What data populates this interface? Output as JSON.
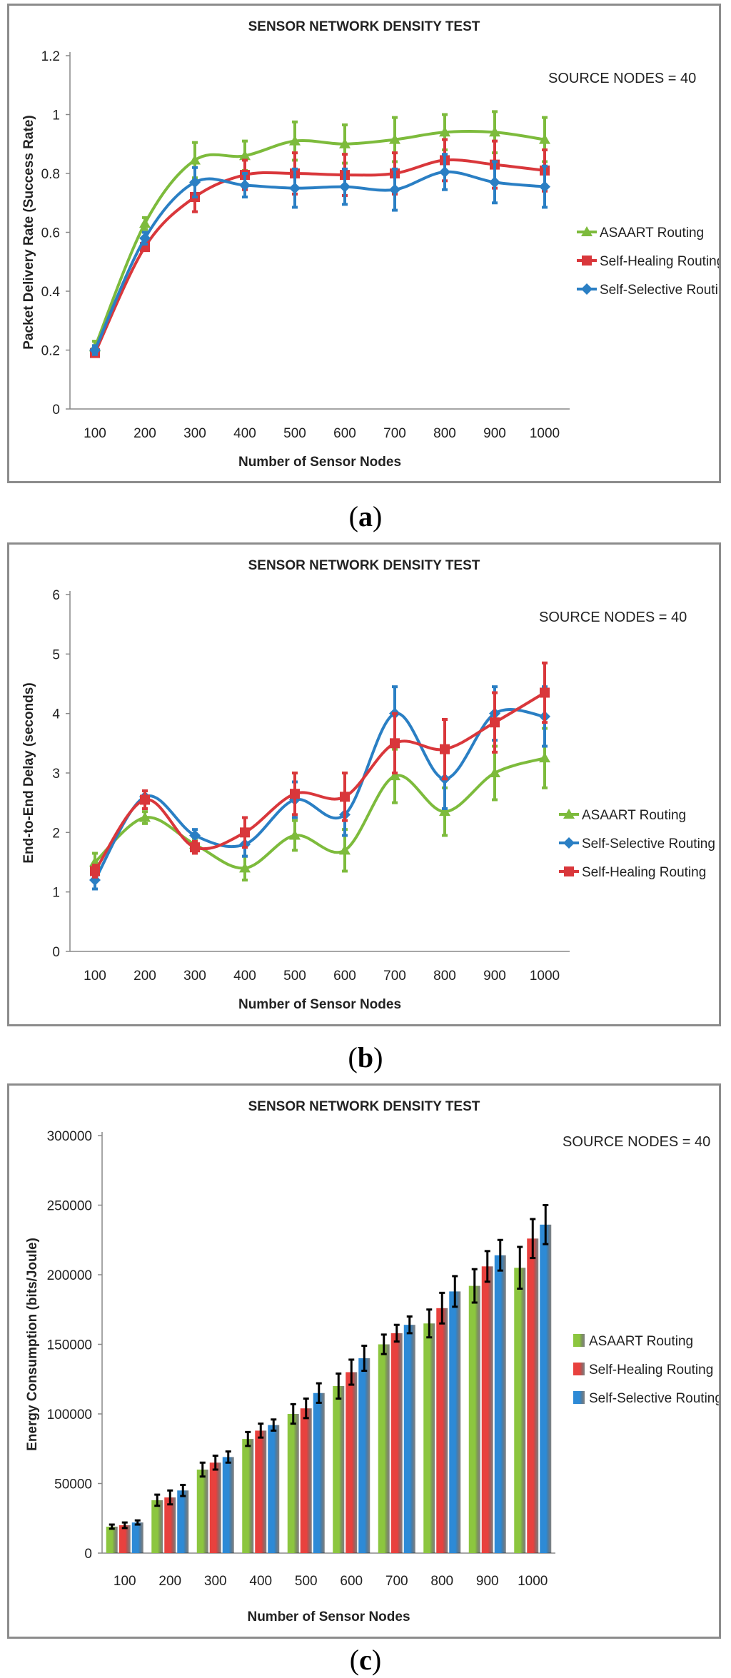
{
  "chart_data": [
    {
      "id": "a",
      "type": "line",
      "title": "SENSOR NETWORK DENSITY TEST",
      "annotation": "SOURCE NODES = 40",
      "xlabel": "Number of Sensor Nodes",
      "ylabel": "Packet Delivery Rate (Success Rate)",
      "categories": [
        "100",
        "200",
        "300",
        "400",
        "500",
        "600",
        "700",
        "800",
        "900",
        "1000"
      ],
      "ylim": [
        0,
        1.2
      ],
      "yticks": [
        0,
        0.2,
        0.4,
        0.6,
        0.8,
        1,
        1.2
      ],
      "ytick_labels": [
        "0",
        "0.2",
        "0.4",
        "0.6",
        "0.8",
        "1",
        "1.2"
      ],
      "legend_position": "right",
      "series": [
        {
          "name": "ASAART Routing",
          "color": "#7dbb3c",
          "marker": "triangle",
          "values": [
            0.21,
            0.63,
            0.845,
            0.86,
            0.91,
            0.9,
            0.915,
            0.94,
            0.94,
            0.915
          ],
          "errors": [
            0.02,
            0.02,
            0.06,
            0.05,
            0.065,
            0.065,
            0.075,
            0.06,
            0.07,
            0.075
          ]
        },
        {
          "name": "Self-Healing Routing",
          "color": "#d9373b",
          "marker": "square",
          "values": [
            0.19,
            0.55,
            0.72,
            0.795,
            0.8,
            0.795,
            0.8,
            0.845,
            0.83,
            0.81
          ],
          "errors": [
            0.01,
            0.01,
            0.05,
            0.05,
            0.07,
            0.07,
            0.07,
            0.07,
            0.08,
            0.07
          ]
        },
        {
          "name": "Self-Selective Routing",
          "color": "#2a7fc4",
          "marker": "diamond",
          "values": [
            0.2,
            0.58,
            0.77,
            0.76,
            0.75,
            0.755,
            0.745,
            0.805,
            0.77,
            0.755
          ],
          "errors": [
            0.015,
            0.02,
            0.05,
            0.04,
            0.065,
            0.06,
            0.07,
            0.06,
            0.07,
            0.07
          ]
        }
      ]
    },
    {
      "id": "b",
      "type": "line",
      "title": "SENSOR NETWORK DENSITY TEST",
      "annotation": "SOURCE NODES = 40",
      "xlabel": "Number of Sensor Nodes",
      "ylabel": "End-to-End Delay (seconds)",
      "categories": [
        "100",
        "200",
        "300",
        "400",
        "500",
        "600",
        "700",
        "800",
        "900",
        "1000"
      ],
      "ylim": [
        0,
        6
      ],
      "yticks": [
        0,
        1,
        2,
        3,
        4,
        5,
        6
      ],
      "ytick_labels": [
        "0",
        "1",
        "2",
        "3",
        "4",
        "5",
        "6"
      ],
      "legend_position": "right",
      "series": [
        {
          "name": "ASAART Routing",
          "color": "#7dbb3c",
          "marker": "triangle",
          "values": [
            1.5,
            2.25,
            1.8,
            1.4,
            1.95,
            1.7,
            2.95,
            2.35,
            3.0,
            3.25
          ],
          "errors": [
            0.15,
            0.1,
            0.1,
            0.2,
            0.25,
            0.35,
            0.45,
            0.4,
            0.45,
            0.5
          ]
        },
        {
          "name": "Self-Selective Routing",
          "color": "#2a7fc4",
          "marker": "diamond",
          "values": [
            1.2,
            2.6,
            1.95,
            1.8,
            2.55,
            2.3,
            4.0,
            2.9,
            4.0,
            3.95
          ],
          "errors": [
            0.15,
            0.1,
            0.1,
            0.2,
            0.3,
            0.35,
            0.45,
            0.5,
            0.45,
            0.5
          ]
        },
        {
          "name": "Self-Healing Routing",
          "color": "#d9373b",
          "marker": "square",
          "values": [
            1.35,
            2.55,
            1.75,
            2.0,
            2.65,
            2.6,
            3.5,
            3.4,
            3.85,
            4.35
          ],
          "errors": [
            0.1,
            0.15,
            0.1,
            0.25,
            0.35,
            0.4,
            0.5,
            0.5,
            0.5,
            0.5
          ]
        }
      ]
    },
    {
      "id": "c",
      "type": "bar",
      "title": "SENSOR NETWORK DENSITY TEST",
      "annotation": "SOURCE NODES = 40",
      "xlabel": "Number of Sensor Nodes",
      "ylabel": "Energy Consumption (bits/Joule)",
      "categories": [
        "100",
        "200",
        "300",
        "400",
        "500",
        "600",
        "700",
        "800",
        "900",
        "1000"
      ],
      "ylim": [
        0,
        300000
      ],
      "yticks": [
        0,
        50000,
        100000,
        150000,
        200000,
        250000,
        300000
      ],
      "ytick_labels": [
        "0",
        "50000",
        "100000",
        "150000",
        "200000",
        "250000",
        "300000"
      ],
      "legend_position": "right",
      "series": [
        {
          "name": "ASAART Routing",
          "color": "#8cc63f",
          "values": [
            19000,
            38000,
            60000,
            82000,
            100000,
            120000,
            150000,
            165000,
            192000,
            205000
          ],
          "errors": [
            1500,
            4000,
            5000,
            5000,
            7000,
            9000,
            7000,
            10000,
            12000,
            15000
          ]
        },
        {
          "name": "Self-Healing Routing",
          "color": "#e8413e",
          "values": [
            20000,
            40000,
            65000,
            88000,
            104000,
            130000,
            158000,
            176000,
            206000,
            226000
          ],
          "errors": [
            2000,
            5000,
            5000,
            5000,
            7000,
            9000,
            6000,
            11000,
            11000,
            14000
          ]
        },
        {
          "name": "Self-Selective Routing",
          "color": "#2d8ad6",
          "values": [
            22000,
            45000,
            69000,
            92000,
            115000,
            140000,
            164000,
            188000,
            214000,
            236000
          ],
          "errors": [
            1500,
            4000,
            4000,
            4000,
            7000,
            9000,
            6000,
            11000,
            11000,
            14000
          ]
        }
      ]
    }
  ],
  "captions": [
    "a",
    "b",
    "c"
  ]
}
